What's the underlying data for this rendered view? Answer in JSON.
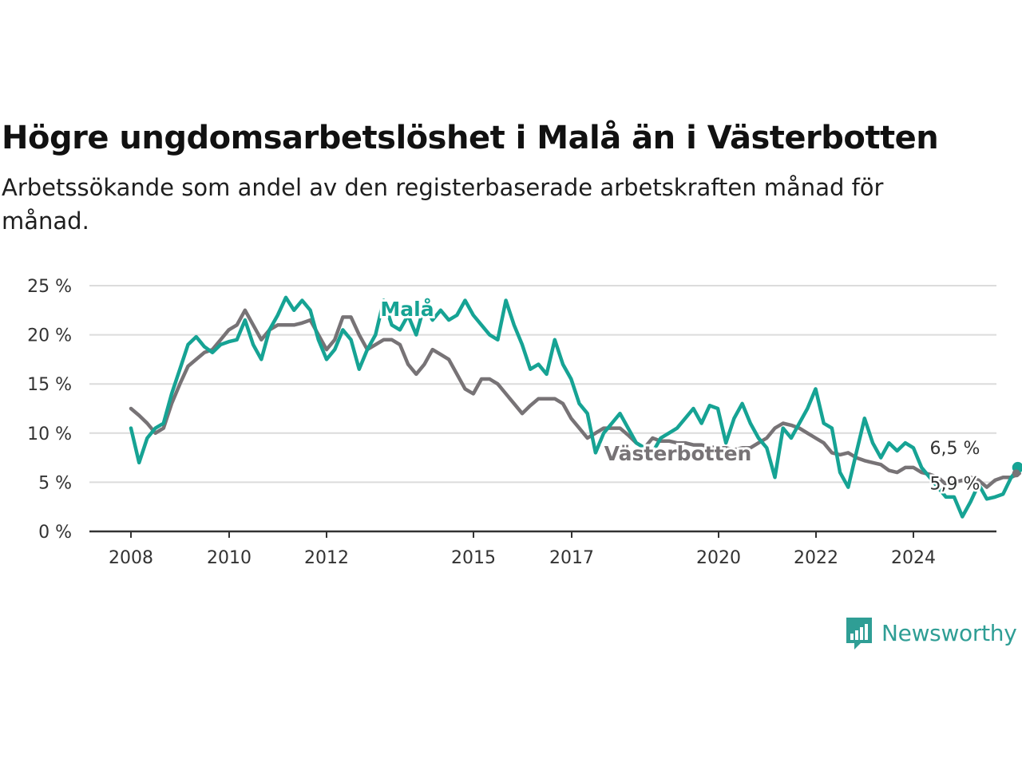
{
  "title": "Högre ungdomsarbetslöshet i Malå än i Västerbotten",
  "subtitle": "Arbetssökande som andel av den registerbaserade arbetskraften månad för månad.",
  "brand": {
    "name": "Newsworthy",
    "icon": "newsworthy-logo-icon",
    "color": "#2f9e95"
  },
  "chart_data": {
    "type": "line",
    "title": "Högre ungdomsarbetslöshet i Malå än i Västerbotten",
    "subtitle": "Arbetssökande som andel av den registerbaserade arbetskraften månad för månad.",
    "xlabel": "",
    "ylabel": "",
    "x_ticks": [
      "2008",
      "2010",
      "2012",
      "2015",
      "2017",
      "2020",
      "2022",
      "2024"
    ],
    "y_ticks": [
      "0 %",
      "5 %",
      "10 %",
      "15 %",
      "20 %",
      "25 %"
    ],
    "ylim": [
      0,
      25
    ],
    "xlim": [
      "2007-03",
      "2025-04"
    ],
    "grid": "horizontal",
    "legend": "direct labels on lines",
    "series": [
      {
        "name": "Malå",
        "color": "#16a394",
        "last_value_label": "6,5 %",
        "anchor": [
          [
            "2008-01",
            10.5
          ],
          [
            "2008-03",
            7
          ],
          [
            "2008-05",
            9.5
          ],
          [
            "2008-07",
            10.5
          ],
          [
            "2008-09",
            11
          ],
          [
            "2008-11",
            14
          ],
          [
            "2009-01",
            16.5
          ],
          [
            "2009-03",
            19
          ],
          [
            "2009-05",
            19.8
          ],
          [
            "2009-07",
            18.8
          ],
          [
            "2009-09",
            18.2
          ],
          [
            "2009-11",
            19
          ],
          [
            "2010-01",
            19.3
          ],
          [
            "2010-03",
            19.5
          ],
          [
            "2010-05",
            21.5
          ],
          [
            "2010-07",
            19
          ],
          [
            "2010-09",
            17.5
          ],
          [
            "2010-11",
            20.5
          ],
          [
            "2011-01",
            22
          ],
          [
            "2011-03",
            23.8
          ],
          [
            "2011-05",
            22.5
          ],
          [
            "2011-07",
            23.5
          ],
          [
            "2011-09",
            22.5
          ],
          [
            "2011-11",
            19.5
          ],
          [
            "2012-01",
            17.5
          ],
          [
            "2012-03",
            18.5
          ],
          [
            "2012-05",
            20.5
          ],
          [
            "2012-07",
            19.5
          ],
          [
            "2012-09",
            16.5
          ],
          [
            "2012-11",
            18.5
          ],
          [
            "2013-01",
            20
          ],
          [
            "2013-03",
            23.5
          ],
          [
            "2013-05",
            21
          ],
          [
            "2013-07",
            20.5
          ],
          [
            "2013-09",
            22
          ],
          [
            "2013-11",
            20
          ],
          [
            "2014-01",
            23
          ],
          [
            "2014-03",
            21.5
          ],
          [
            "2014-05",
            22.5
          ],
          [
            "2014-07",
            21.5
          ],
          [
            "2014-09",
            22
          ],
          [
            "2014-11",
            23.5
          ],
          [
            "2015-01",
            22
          ],
          [
            "2015-03",
            21
          ],
          [
            "2015-05",
            20
          ],
          [
            "2015-07",
            19.5
          ],
          [
            "2015-09",
            23.5
          ],
          [
            "2015-11",
            21
          ],
          [
            "2016-01",
            19
          ],
          [
            "2016-03",
            16.5
          ],
          [
            "2016-05",
            17
          ],
          [
            "2016-07",
            16
          ],
          [
            "2016-09",
            19.5
          ],
          [
            "2016-11",
            17
          ],
          [
            "2017-01",
            15.5
          ],
          [
            "2017-03",
            13
          ],
          [
            "2017-05",
            12
          ],
          [
            "2017-07",
            8
          ],
          [
            "2017-09",
            10
          ],
          [
            "2017-11",
            11
          ],
          [
            "2018-01",
            12
          ],
          [
            "2018-03",
            10.5
          ],
          [
            "2018-05",
            9
          ],
          [
            "2018-07",
            8.5
          ],
          [
            "2018-09",
            8
          ],
          [
            "2018-11",
            9.5
          ],
          [
            "2019-01",
            10
          ],
          [
            "2019-03",
            10.5
          ],
          [
            "2019-05",
            11.5
          ],
          [
            "2019-07",
            12.5
          ],
          [
            "2019-09",
            11
          ],
          [
            "2019-11",
            12.8
          ],
          [
            "2020-01",
            12.5
          ],
          [
            "2020-03",
            9
          ],
          [
            "2020-05",
            11.5
          ],
          [
            "2020-07",
            13
          ],
          [
            "2020-09",
            11
          ],
          [
            "2020-11",
            9.5
          ],
          [
            "2021-01",
            8.5
          ],
          [
            "2021-03",
            5.5
          ],
          [
            "2021-05",
            10.5
          ],
          [
            "2021-07",
            9.5
          ],
          [
            "2021-09",
            11
          ],
          [
            "2021-11",
            12.5
          ],
          [
            "2022-01",
            14.5
          ],
          [
            "2022-03",
            11
          ],
          [
            "2022-05",
            10.5
          ],
          [
            "2022-07",
            6
          ],
          [
            "2022-09",
            4.5
          ],
          [
            "2022-11",
            8
          ],
          [
            "2023-01",
            11.5
          ],
          [
            "2023-03",
            9
          ],
          [
            "2023-05",
            7.5
          ],
          [
            "2023-07",
            9
          ],
          [
            "2023-09",
            8.2
          ],
          [
            "2023-11",
            9
          ],
          [
            "2024-01",
            8.5
          ],
          [
            "2024-03",
            6.5
          ],
          [
            "2024-05",
            5.5
          ],
          [
            "2024-07",
            4.5
          ],
          [
            "2024-09",
            3.5
          ],
          [
            "2024-11",
            3.5
          ],
          [
            "2025-01",
            1.5
          ],
          [
            "2025-03",
            3
          ],
          [
            "2025-05",
            4.8
          ],
          [
            "2025-07",
            3.3
          ],
          [
            "2025-09",
            3.5
          ],
          [
            "2025-11",
            3.8
          ],
          [
            "2026-01",
            5.5
          ],
          [
            "2026-03",
            6.5
          ]
        ]
      },
      {
        "name": "Västerbotten",
        "color": "#777376",
        "last_value_label": "5,9 %",
        "anchor": [
          [
            "2008-01",
            12.5
          ],
          [
            "2008-03",
            11.8
          ],
          [
            "2008-05",
            11
          ],
          [
            "2008-07",
            10
          ],
          [
            "2008-09",
            10.5
          ],
          [
            "2008-11",
            13
          ],
          [
            "2009-01",
            15
          ],
          [
            "2009-03",
            16.8
          ],
          [
            "2009-05",
            17.5
          ],
          [
            "2009-07",
            18.2
          ],
          [
            "2009-09",
            18.5
          ],
          [
            "2009-11",
            19.5
          ],
          [
            "2010-01",
            20.5
          ],
          [
            "2010-03",
            21
          ],
          [
            "2010-05",
            22.5
          ],
          [
            "2010-07",
            21
          ],
          [
            "2010-09",
            19.5
          ],
          [
            "2010-11",
            20.5
          ],
          [
            "2011-01",
            21
          ],
          [
            "2011-03",
            21
          ],
          [
            "2011-05",
            21
          ],
          [
            "2011-07",
            21.2
          ],
          [
            "2011-09",
            21.5
          ],
          [
            "2011-11",
            20
          ],
          [
            "2012-01",
            18.5
          ],
          [
            "2012-03",
            19.5
          ],
          [
            "2012-05",
            21.8
          ],
          [
            "2012-07",
            21.8
          ],
          [
            "2012-09",
            20
          ],
          [
            "2012-11",
            18.5
          ],
          [
            "2013-01",
            19
          ],
          [
            "2013-03",
            19.5
          ],
          [
            "2013-05",
            19.5
          ],
          [
            "2013-07",
            19
          ],
          [
            "2013-09",
            17
          ],
          [
            "2013-11",
            16
          ],
          [
            "2014-01",
            17
          ],
          [
            "2014-03",
            18.5
          ],
          [
            "2014-05",
            18
          ],
          [
            "2014-07",
            17.5
          ],
          [
            "2014-09",
            16
          ],
          [
            "2014-11",
            14.5
          ],
          [
            "2015-01",
            14
          ],
          [
            "2015-03",
            15.5
          ],
          [
            "2015-05",
            15.5
          ],
          [
            "2015-07",
            15
          ],
          [
            "2015-09",
            14
          ],
          [
            "2015-11",
            13
          ],
          [
            "2016-01",
            12
          ],
          [
            "2016-03",
            12.8
          ],
          [
            "2016-05",
            13.5
          ],
          [
            "2016-07",
            13.5
          ],
          [
            "2016-09",
            13.5
          ],
          [
            "2016-11",
            13
          ],
          [
            "2017-01",
            11.5
          ],
          [
            "2017-03",
            10.5
          ],
          [
            "2017-05",
            9.5
          ],
          [
            "2017-07",
            10
          ],
          [
            "2017-09",
            10.5
          ],
          [
            "2017-11",
            10.5
          ],
          [
            "2018-01",
            10.5
          ],
          [
            "2018-03",
            9.8
          ],
          [
            "2018-05",
            9
          ],
          [
            "2018-07",
            8.5
          ],
          [
            "2018-09",
            9.5
          ],
          [
            "2018-11",
            9.2
          ],
          [
            "2019-01",
            9.2
          ],
          [
            "2019-03",
            9
          ],
          [
            "2019-05",
            9
          ],
          [
            "2019-07",
            8.8
          ],
          [
            "2019-09",
            8.8
          ],
          [
            "2019-11",
            8.6
          ],
          [
            "2020-01",
            8.5
          ],
          [
            "2020-03",
            8.5
          ],
          [
            "2020-05",
            8.3
          ],
          [
            "2020-07",
            8.5
          ],
          [
            "2020-09",
            8.5
          ],
          [
            "2020-11",
            9
          ],
          [
            "2021-01",
            9.5
          ],
          [
            "2021-03",
            10.5
          ],
          [
            "2021-05",
            11
          ],
          [
            "2021-07",
            10.8
          ],
          [
            "2021-09",
            10.5
          ],
          [
            "2021-11",
            10
          ],
          [
            "2022-01",
            9.5
          ],
          [
            "2022-03",
            9
          ],
          [
            "2022-05",
            8
          ],
          [
            "2022-07",
            7.8
          ],
          [
            "2022-09",
            8
          ],
          [
            "2022-11",
            7.5
          ],
          [
            "2023-01",
            7.2
          ],
          [
            "2023-03",
            7
          ],
          [
            "2023-05",
            6.8
          ],
          [
            "2023-07",
            6.2
          ],
          [
            "2023-09",
            6
          ],
          [
            "2023-11",
            6.5
          ],
          [
            "2024-01",
            6.5
          ],
          [
            "2024-03",
            6
          ],
          [
            "2024-05",
            5.8
          ],
          [
            "2024-07",
            5.5
          ],
          [
            "2024-09",
            4.8
          ],
          [
            "2024-11",
            5
          ],
          [
            "2025-01",
            5.2
          ],
          [
            "2025-03",
            5.5
          ],
          [
            "2025-05",
            5.2
          ],
          [
            "2025-07",
            4.5
          ],
          [
            "2025-09",
            5.2
          ],
          [
            "2025-11",
            5.5
          ],
          [
            "2026-01",
            5.5
          ],
          [
            "2026-03",
            5.9
          ]
        ]
      }
    ],
    "annotations": [
      {
        "text": "Malå",
        "series": "Malå"
      },
      {
        "text": "Västerbotten",
        "series": "Västerbotten"
      }
    ]
  }
}
